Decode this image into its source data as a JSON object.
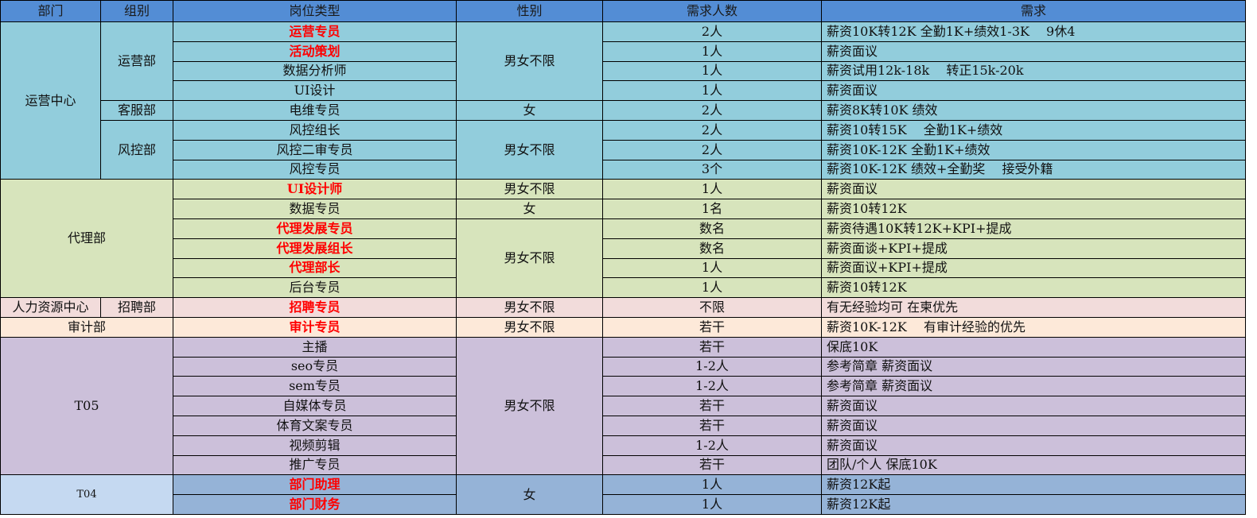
{
  "header": [
    "部门",
    "组别",
    "岗位类型",
    "性别",
    "需求人数",
    "需求"
  ],
  "colors": {
    "header": "#538dd5",
    "ops": "#92cddc",
    "agent": "#d7e4bc",
    "hr": "#f2dcdb",
    "audit": "#fde9d9",
    "t05": "#ccc0da",
    "t04": "#95b3d7",
    "t04_dept": "#c5d9f1",
    "highlight_text": "#ff0000"
  },
  "departments": [
    "运营中心",
    "代理部",
    "人力资源中心",
    "审计部",
    "T05",
    "T04"
  ],
  "groups": [
    "运营部",
    "客服部",
    "风控部",
    "招聘部"
  ],
  "genders": [
    "男女不限",
    "女"
  ],
  "rows": [
    {
      "post": "运营专员",
      "count": "2人",
      "req": "薪资10K转12K 全勤1K+绩效1-3K　 9休4",
      "highlight": true
    },
    {
      "post": "活动策划",
      "count": "1人",
      "req": "薪资面议",
      "highlight": true
    },
    {
      "post": "数据分析师",
      "count": "1人",
      "req": "薪资试用12k-18k　 转正15k-20k",
      "highlight": false
    },
    {
      "post": "UI设计",
      "count": "1人",
      "req": "薪资面议",
      "highlight": false
    },
    {
      "post": "电维专员",
      "count": "2人",
      "req": "薪资8K转10K 绩效",
      "highlight": false
    },
    {
      "post": "风控组长",
      "count": "2人",
      "req": "薪资10转15K　 全勤1K+绩效",
      "highlight": false
    },
    {
      "post": "风控二审专员",
      "count": "2人",
      "req": "薪资10K-12K 全勤1K+绩效",
      "highlight": false
    },
    {
      "post": "风控专员",
      "count": "3个",
      "req": "薪资10K-12K 绩效+全勤奖　 接受外籍",
      "highlight": false
    },
    {
      "post": "UI设计师",
      "count": "1人",
      "req": "薪资面议",
      "highlight": true
    },
    {
      "post": "数据专员",
      "count": "1名",
      "req": "薪资10转12K",
      "highlight": false
    },
    {
      "post": "代理发展专员",
      "count": "数名",
      "req": "薪资待遇10K转12K+KPI+提成",
      "highlight": true
    },
    {
      "post": "代理发展组长",
      "count": "数名",
      "req": "薪资面谈+KPI+提成",
      "highlight": true
    },
    {
      "post": "代理部长",
      "count": "1人",
      "req": "薪资面议+KPI+提成",
      "highlight": true
    },
    {
      "post": "后台专员",
      "count": "1人",
      "req": "薪资10转12K",
      "highlight": false
    },
    {
      "post": "招聘专员",
      "count": "不限",
      "req": "有无经验均可 在柬优先",
      "highlight": true
    },
    {
      "post": "审计专员",
      "count": "若干",
      "req": "薪资10K-12K　 有审计经验的优先",
      "highlight": true
    },
    {
      "post": "主播",
      "count": "若干",
      "req": "保底10K",
      "highlight": false
    },
    {
      "post": "seo专员",
      "count": "1-2人",
      "req": "参考简章 薪资面议",
      "highlight": false
    },
    {
      "post": "sem专员",
      "count": "1-2人",
      "req": "参考简章 薪资面议",
      "highlight": false
    },
    {
      "post": "自媒体专员",
      "count": "若干",
      "req": "薪资面议",
      "highlight": false
    },
    {
      "post": "体育文案专员",
      "count": "若干",
      "req": "薪资面议",
      "highlight": false
    },
    {
      "post": "视频剪辑",
      "count": "1-2人",
      "req": "薪资面议",
      "highlight": false
    },
    {
      "post": "推广专员",
      "count": "若干",
      "req": "团队/个人 保底10K",
      "highlight": false
    },
    {
      "post": "部门助理",
      "count": "1人",
      "req": "薪资12K起",
      "highlight": true
    },
    {
      "post": "部门财务",
      "count": "1人",
      "req": "薪资12K起",
      "highlight": true
    }
  ]
}
